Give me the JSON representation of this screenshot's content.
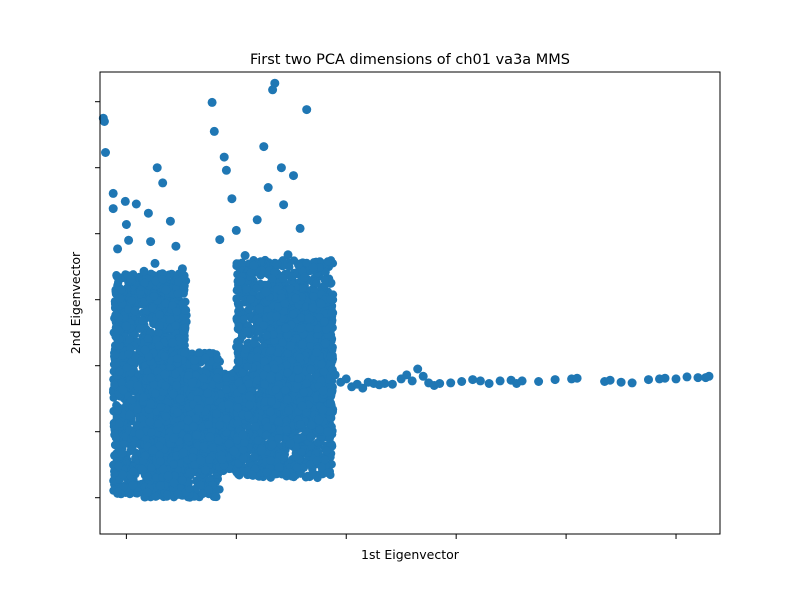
{
  "chart_data": {
    "type": "scatter",
    "title": "First two PCA dimensions of ch01 va3a MMS",
    "xlabel": "1st Eigenvector",
    "ylabel": "2nd Eigenvector",
    "tick_labels_shown": false,
    "grid": false,
    "legend": "none",
    "xlim": [
      -0.24,
      5.4
    ],
    "ylim": [
      -0.55,
      6.45
    ],
    "x_ticks": [
      0,
      1,
      2,
      3,
      4,
      5
    ],
    "y_ticks": [
      0,
      1,
      2,
      3,
      4,
      5,
      6
    ],
    "series": [
      {
        "color": "#1f77b4",
        "marker": "circle",
        "points": [
          [
            -0.21,
            5.75
          ],
          [
            -0.2,
            5.7
          ],
          [
            -0.19,
            5.23
          ],
          [
            -0.12,
            4.61
          ],
          [
            -0.12,
            4.38
          ],
          [
            -0.1,
            2.04
          ],
          [
            -0.08,
            2.54
          ],
          [
            -0.08,
            3.77
          ],
          [
            -0.06,
            3.02
          ],
          [
            -0.04,
            0.68
          ],
          [
            -0.03,
            1.63
          ],
          [
            -0.01,
            4.49
          ],
          [
            0.0,
            2.6
          ],
          [
            0.0,
            4.14
          ],
          [
            0.02,
            3.9
          ],
          [
            0.03,
            1.25
          ],
          [
            0.04,
            3.31
          ],
          [
            0.06,
            0.19
          ],
          [
            0.08,
            2.83
          ],
          [
            0.09,
            4.45
          ],
          [
            0.1,
            1.69
          ],
          [
            0.12,
            0.97
          ],
          [
            0.14,
            0.43
          ],
          [
            0.16,
            3.43
          ],
          [
            0.17,
            2.24
          ],
          [
            0.19,
            0.08
          ],
          [
            0.2,
            4.31
          ],
          [
            0.22,
            3.88
          ],
          [
            0.22,
            1.42
          ],
          [
            0.24,
            0.72
          ],
          [
            0.26,
            3.55
          ],
          [
            0.28,
            5.0
          ],
          [
            0.3,
            2.61
          ],
          [
            0.31,
            0.18
          ],
          [
            0.33,
            4.77
          ],
          [
            0.35,
            1.87
          ],
          [
            0.36,
            3.15
          ],
          [
            0.38,
            0.33
          ],
          [
            0.4,
            4.19
          ],
          [
            0.42,
            2.35
          ],
          [
            0.43,
            0.9
          ],
          [
            0.45,
            3.81
          ],
          [
            0.47,
            0.05
          ],
          [
            0.49,
            1.5
          ],
          [
            0.51,
            3.47
          ],
          [
            0.52,
            0.68
          ],
          [
            0.54,
            2.84
          ],
          [
            0.56,
            1.18
          ],
          [
            0.58,
            0.38
          ],
          [
            0.6,
            1.74
          ],
          [
            0.62,
            2.08
          ],
          [
            0.64,
            0.95
          ],
          [
            0.66,
            1.35
          ],
          [
            0.68,
            0.56
          ],
          [
            0.7,
            1.81
          ],
          [
            0.72,
            0.42
          ],
          [
            0.74,
            1.58
          ],
          [
            0.76,
            0.92
          ],
          [
            0.78,
            5.99
          ],
          [
            0.8,
            5.55
          ],
          [
            0.82,
            1.27
          ],
          [
            0.85,
            3.91
          ],
          [
            0.87,
            0.58
          ],
          [
            0.89,
            5.16
          ],
          [
            0.91,
            4.96
          ],
          [
            0.93,
            1.41
          ],
          [
            0.96,
            4.53
          ],
          [
            0.98,
            0.71
          ],
          [
            1.0,
            4.05
          ],
          [
            1.02,
            2.06
          ],
          [
            1.04,
            3.28
          ],
          [
            1.06,
            0.95
          ],
          [
            1.08,
            3.67
          ],
          [
            1.1,
            2.52
          ],
          [
            1.12,
            1.54
          ],
          [
            1.14,
            0.35
          ],
          [
            1.16,
            3.52
          ],
          [
            1.19,
            4.21
          ],
          [
            1.21,
            2.86
          ],
          [
            1.23,
            0.72
          ],
          [
            1.25,
            5.32
          ],
          [
            1.27,
            3.12
          ],
          [
            1.29,
            4.7
          ],
          [
            1.31,
            1.81
          ],
          [
            1.33,
            6.18
          ],
          [
            1.35,
            6.28
          ],
          [
            1.37,
            3.54
          ],
          [
            1.39,
            0.46
          ],
          [
            1.41,
            5.0
          ],
          [
            1.43,
            4.44
          ],
          [
            1.45,
            2.57
          ],
          [
            1.47,
            3.68
          ],
          [
            1.49,
            0.82
          ],
          [
            1.52,
            4.88
          ],
          [
            1.54,
            3.02
          ],
          [
            1.56,
            1.94
          ],
          [
            1.58,
            4.08
          ],
          [
            1.6,
            1.39
          ],
          [
            1.62,
            3.34
          ],
          [
            1.64,
            5.88
          ],
          [
            1.66,
            2.72
          ],
          [
            1.68,
            0.92
          ],
          [
            1.7,
            3.49
          ],
          [
            1.73,
            2.2
          ],
          [
            1.75,
            1.18
          ],
          [
            1.77,
            2.94
          ],
          [
            1.79,
            1.62
          ],
          [
            1.81,
            2.34
          ],
          [
            1.83,
            1.0
          ],
          [
            1.86,
            2.14
          ],
          [
            1.9,
            1.86
          ],
          [
            1.95,
            1.75
          ],
          [
            2.0,
            1.8
          ],
          [
            2.05,
            1.68
          ],
          [
            2.1,
            1.72
          ],
          [
            2.15,
            1.66
          ],
          [
            2.2,
            1.75
          ],
          [
            2.25,
            1.73
          ],
          [
            2.3,
            1.71
          ],
          [
            2.35,
            1.73
          ],
          [
            2.42,
            1.72
          ],
          [
            2.5,
            1.8
          ],
          [
            2.55,
            1.86
          ],
          [
            2.6,
            1.77
          ],
          [
            2.65,
            1.95
          ],
          [
            2.7,
            1.84
          ],
          [
            2.75,
            1.74
          ],
          [
            2.8,
            1.7
          ],
          [
            2.85,
            1.73
          ],
          [
            2.95,
            1.74
          ],
          [
            3.05,
            1.76
          ],
          [
            3.15,
            1.79
          ],
          [
            3.22,
            1.77
          ],
          [
            3.3,
            1.73
          ],
          [
            3.4,
            1.77
          ],
          [
            3.5,
            1.78
          ],
          [
            3.55,
            1.73
          ],
          [
            3.6,
            1.77
          ],
          [
            3.75,
            1.76
          ],
          [
            3.9,
            1.79
          ],
          [
            4.05,
            1.8
          ],
          [
            4.1,
            1.81
          ],
          [
            4.35,
            1.76
          ],
          [
            4.4,
            1.78
          ],
          [
            4.5,
            1.75
          ],
          [
            4.6,
            1.74
          ],
          [
            4.75,
            1.79
          ],
          [
            4.85,
            1.8
          ],
          [
            4.9,
            1.81
          ],
          [
            5.0,
            1.8
          ],
          [
            5.1,
            1.83
          ],
          [
            5.2,
            1.82
          ],
          [
            5.27,
            1.82
          ],
          [
            5.3,
            1.84
          ]
        ]
      }
    ],
    "density_bands": [
      {
        "x_range": [
          -0.12,
          0.55
        ],
        "y_range": [
          0.05,
          3.4
        ],
        "density": 1400
      },
      {
        "x_range": [
          0.15,
          0.85
        ],
        "y_range": [
          0.0,
          2.2
        ],
        "density": 1000
      },
      {
        "x_range": [
          0.55,
          1.05
        ],
        "y_range": [
          0.4,
          1.9
        ],
        "density": 700
      },
      {
        "x_range": [
          1.0,
          1.88
        ],
        "y_range": [
          0.3,
          3.6
        ],
        "density": 1600
      },
      {
        "x_range": [
          1.25,
          1.88
        ],
        "y_range": [
          1.0,
          3.1
        ],
        "density": 800
      }
    ]
  }
}
